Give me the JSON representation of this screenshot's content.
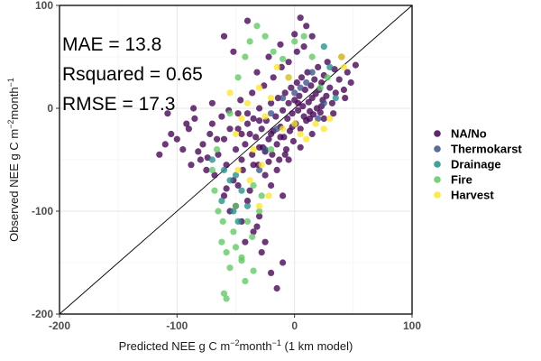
{
  "chart_data": {
    "type": "scatter",
    "title": "",
    "xlabel_parts": {
      "pre": "Predicted NEE g C m",
      "sup": "−2",
      "mid": "month",
      "sup2": "−1",
      "post": " (1 km model)"
    },
    "ylabel_parts": {
      "pre": "Observed NEE g C m",
      "sup": "−2",
      "mid": "month",
      "sup2": "−1",
      "post": ""
    },
    "xlim": [
      -200,
      100
    ],
    "ylim": [
      -200,
      100
    ],
    "xticks": [
      -200,
      -100,
      0,
      100
    ],
    "yticks": [
      -200,
      -100,
      0,
      100
    ],
    "xtick_labels": [
      "-200",
      "-100",
      "0",
      "100"
    ],
    "ytick_labels": [
      "-200",
      "-100",
      "0",
      "100"
    ],
    "grid": true,
    "reference_line": "1:1",
    "annotations": [
      "MAE = 13.8",
      "Rsquared = 0.65",
      "RMSE = 17.3"
    ],
    "legend_placement": "right",
    "series": [
      {
        "name": "NA/No",
        "color": "#440154",
        "points": [
          [
            -100,
            -30
          ],
          [
            -95,
            -40
          ],
          [
            -90,
            -20
          ],
          [
            -88,
            -55
          ],
          [
            -85,
            -10
          ],
          [
            -80,
            -50
          ],
          [
            -78,
            -35
          ],
          [
            -75,
            -60
          ],
          [
            -72,
            -25
          ],
          [
            -70,
            -15
          ],
          [
            -68,
            -65
          ],
          [
            -65,
            -45
          ],
          [
            -62,
            -8
          ],
          [
            -60,
            -30
          ],
          [
            -58,
            -55
          ],
          [
            -55,
            -20
          ],
          [
            -52,
            -70
          ],
          [
            -50,
            -40
          ],
          [
            -48,
            -5
          ],
          [
            -45,
            -25
          ],
          [
            -44,
            -60
          ],
          [
            -42,
            -35
          ],
          [
            -40,
            -15
          ],
          [
            -38,
            -80
          ],
          [
            -36,
            -45
          ],
          [
            -35,
            -10
          ],
          [
            -33,
            -28
          ],
          [
            -31,
            -55
          ],
          [
            -30,
            0
          ],
          [
            -28,
            -20
          ],
          [
            -27,
            -38
          ],
          [
            -25,
            -65
          ],
          [
            -24,
            -12
          ],
          [
            -22,
            -30
          ],
          [
            -20,
            5
          ],
          [
            -19,
            -45
          ],
          [
            -18,
            -22
          ],
          [
            -16,
            -8
          ],
          [
            -15,
            -35
          ],
          [
            -14,
            10
          ],
          [
            -13,
            -50
          ],
          [
            -12,
            -18
          ],
          [
            -10,
            -2
          ],
          [
            -9,
            -28
          ],
          [
            -8,
            15
          ],
          [
            -7,
            -40
          ],
          [
            -6,
            -10
          ],
          [
            -5,
            5
          ],
          [
            -4,
            -22
          ],
          [
            -3,
            20
          ],
          [
            -2,
            -5
          ],
          [
            -1,
            -32
          ],
          [
            0,
            8
          ],
          [
            1,
            -15
          ],
          [
            2,
            25
          ],
          [
            3,
            -2
          ],
          [
            4,
            12
          ],
          [
            5,
            -20
          ],
          [
            6,
            30
          ],
          [
            7,
            2
          ],
          [
            8,
            -8
          ],
          [
            9,
            18
          ],
          [
            10,
            -12
          ],
          [
            11,
            35
          ],
          [
            12,
            6
          ],
          [
            13,
            -3
          ],
          [
            14,
            22
          ],
          [
            15,
            10
          ],
          [
            16,
            -6
          ],
          [
            17,
            28
          ],
          [
            18,
            14
          ],
          [
            19,
            0
          ],
          [
            20,
            40
          ],
          [
            21,
            18
          ],
          [
            22,
            -4
          ],
          [
            23,
            25
          ],
          [
            24,
            8
          ],
          [
            25,
            32
          ],
          [
            27,
            12
          ],
          [
            28,
            45
          ],
          [
            30,
            20
          ],
          [
            32,
            5
          ],
          [
            34,
            38
          ],
          [
            35,
            15
          ],
          [
            38,
            28
          ],
          [
            40,
            50
          ],
          [
            42,
            18
          ],
          [
            45,
            35
          ],
          [
            48,
            25
          ],
          [
            52,
            42
          ],
          [
            -60,
            -85
          ],
          [
            -55,
            -100
          ],
          [
            -50,
            -95
          ],
          [
            -45,
            -110
          ],
          [
            -40,
            -90
          ],
          [
            -35,
            -120
          ],
          [
            -30,
            -105
          ],
          [
            -28,
            -140
          ],
          [
            -25,
            -130
          ],
          [
            -20,
            -160
          ],
          [
            -15,
            -175
          ],
          [
            -10,
            -150
          ],
          [
            -32,
            -115
          ],
          [
            -42,
            -130
          ],
          [
            -48,
            -75
          ],
          [
            -58,
            -78
          ],
          [
            -66,
            -30
          ],
          [
            -74,
            -48
          ],
          [
            -82,
            -42
          ],
          [
            -92,
            -15
          ],
          [
            -105,
            -25
          ],
          [
            -110,
            -35
          ],
          [
            -115,
            -45
          ],
          [
            -108,
            -5
          ],
          [
            -86,
            0
          ],
          [
            -70,
            5
          ],
          [
            -56,
            -2
          ],
          [
            -46,
            8
          ],
          [
            -36,
            15
          ],
          [
            -26,
            22
          ],
          [
            -18,
            30
          ],
          [
            -11,
            40
          ],
          [
            -5,
            45
          ],
          [
            2,
            55
          ],
          [
            8,
            60
          ],
          [
            -32,
            35
          ],
          [
            -22,
            50
          ],
          [
            -12,
            62
          ],
          [
            0,
            72
          ],
          [
            10,
            80
          ],
          [
            5,
            88
          ],
          [
            15,
            70
          ],
          [
            -52,
            55
          ],
          [
            -60,
            70
          ],
          [
            -40,
            85
          ],
          [
            -35,
            -55
          ],
          [
            -25,
            -42
          ],
          [
            -15,
            -60
          ],
          [
            -5,
            -50
          ],
          [
            5,
            -38
          ],
          [
            15,
            -25
          ],
          [
            25,
            -10
          ],
          [
            -20,
            -75
          ],
          [
            -10,
            -85
          ],
          [
            -45,
            -50
          ],
          [
            -38,
            -25
          ],
          [
            -30,
            -38
          ],
          [
            -22,
            -52
          ],
          [
            -12,
            -28
          ],
          [
            -2,
            -18
          ],
          [
            3,
            5
          ],
          [
            13,
            -10
          ],
          [
            23,
            2
          ],
          [
            33,
            -5
          ],
          [
            43,
            10
          ],
          [
            -48,
            -20
          ],
          [
            -40,
            -5
          ],
          [
            -30,
            -12
          ],
          [
            -20,
            -25
          ],
          [
            -8,
            -45
          ]
        ]
      },
      {
        "name": "Thermokarst",
        "color": "#3b528b",
        "points": [
          [
            -20,
            -5
          ],
          [
            -10,
            10
          ],
          [
            0,
            15
          ],
          [
            5,
            20
          ],
          [
            10,
            25
          ],
          [
            -5,
            30
          ],
          [
            15,
            35
          ],
          [
            20,
            -10
          ],
          [
            -15,
            -20
          ],
          [
            25,
            5
          ],
          [
            -25,
            -40
          ],
          [
            -30,
            -60
          ]
        ]
      },
      {
        "name": "Drainage",
        "color": "#21908c",
        "points": [
          [
            -70,
            -50
          ],
          [
            -60,
            -60
          ],
          [
            -55,
            -70
          ],
          [
            -50,
            -65
          ],
          [
            -45,
            -80
          ],
          [
            -62,
            -90
          ],
          [
            -40,
            -95
          ],
          [
            -52,
            -100
          ],
          [
            25,
            60
          ],
          [
            30,
            40
          ],
          [
            35,
            10
          ],
          [
            -48,
            -110
          ]
        ]
      },
      {
        "name": "Fire",
        "color": "#5dc963",
        "points": [
          [
            -60,
            -180
          ],
          [
            -58,
            -140
          ],
          [
            -55,
            -155
          ],
          [
            -52,
            -120
          ],
          [
            -50,
            -135
          ],
          [
            -45,
            -148
          ],
          [
            -40,
            -110
          ],
          [
            -36,
            -125
          ],
          [
            -35,
            -158
          ],
          [
            -30,
            -100
          ],
          [
            -62,
            -130
          ],
          [
            -65,
            -100
          ],
          [
            -68,
            -80
          ],
          [
            -70,
            -60
          ],
          [
            -66,
            -40
          ],
          [
            -55,
            -5
          ],
          [
            -48,
            30
          ],
          [
            -42,
            50
          ],
          [
            -38,
            65
          ],
          [
            -32,
            80
          ],
          [
            -25,
            70
          ],
          [
            -18,
            55
          ],
          [
            -10,
            48
          ],
          [
            0,
            65
          ],
          [
            8,
            70
          ],
          [
            15,
            50
          ],
          [
            22,
            20
          ],
          [
            28,
            30
          ],
          [
            -20,
            -40
          ],
          [
            -28,
            -85
          ],
          [
            -58,
            -185
          ],
          [
            -42,
            -168
          ],
          [
            -50,
            -95
          ],
          [
            -35,
            -75
          ],
          [
            -45,
            -145
          ],
          [
            -61,
            -110
          ]
        ]
      },
      {
        "name": "Harvest",
        "color": "#fde725",
        "points": [
          [
            -50,
            -25
          ],
          [
            -45,
            -10
          ],
          [
            -40,
            5
          ],
          [
            -35,
            -40
          ],
          [
            -30,
            20
          ],
          [
            -28,
            -55
          ],
          [
            -25,
            -8
          ],
          [
            -20,
            10
          ],
          [
            -15,
            40
          ],
          [
            -10,
            -20
          ],
          [
            -5,
            30
          ],
          [
            0,
            -15
          ],
          [
            5,
            -25
          ],
          [
            10,
            -30
          ],
          [
            18,
            -15
          ],
          [
            25,
            -20
          ],
          [
            30,
            -10
          ],
          [
            40,
            50
          ],
          [
            42,
            40
          ],
          [
            -55,
            15
          ],
          [
            -48,
            -60
          ],
          [
            -38,
            -70
          ],
          [
            -30,
            -95
          ],
          [
            -22,
            -85
          ]
        ]
      }
    ]
  }
}
